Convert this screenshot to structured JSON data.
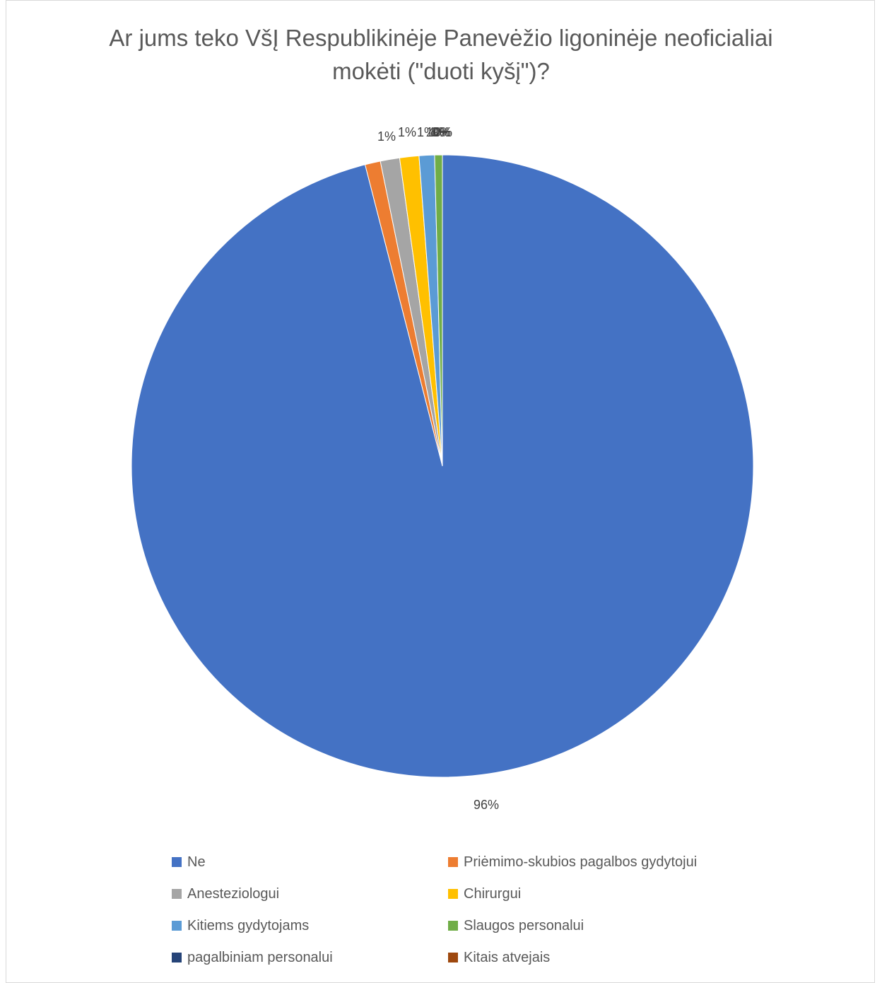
{
  "chart_data": {
    "type": "pie",
    "title": "Ar jums teko VšĮ Respublikinėje Panevėžio ligoninėje neoficialiai mokėti (\"duoti kyšį\")?",
    "title_lines": [
      "Ar jums teko VšĮ Respublikinėje Panevėžio ligoninėje neoficialiai",
      "mokėti (\"duoti kyšį\")?"
    ],
    "categories": [
      "Ne",
      "Priėmimo-skubios pagalbos gydytojui",
      "Anesteziologui",
      "Chirurgui",
      "Kitiems gydytojams",
      "Slaugos personalui",
      "pagalbiniam personalui",
      "Kitais atvejais"
    ],
    "values": [
      96.0,
      0.8,
      1.0,
      1.0,
      0.8,
      0.4,
      0.0,
      0.0
    ],
    "data_labels": [
      "96%",
      "1%",
      "1%",
      "1%",
      "1%",
      "0%",
      "0%",
      "0%"
    ],
    "colors": [
      "#4472c4",
      "#ed7d31",
      "#a5a5a5",
      "#ffc000",
      "#5b9bd5",
      "#70ad47",
      "#264478",
      "#9e480e"
    ],
    "legend_position": "bottom"
  }
}
